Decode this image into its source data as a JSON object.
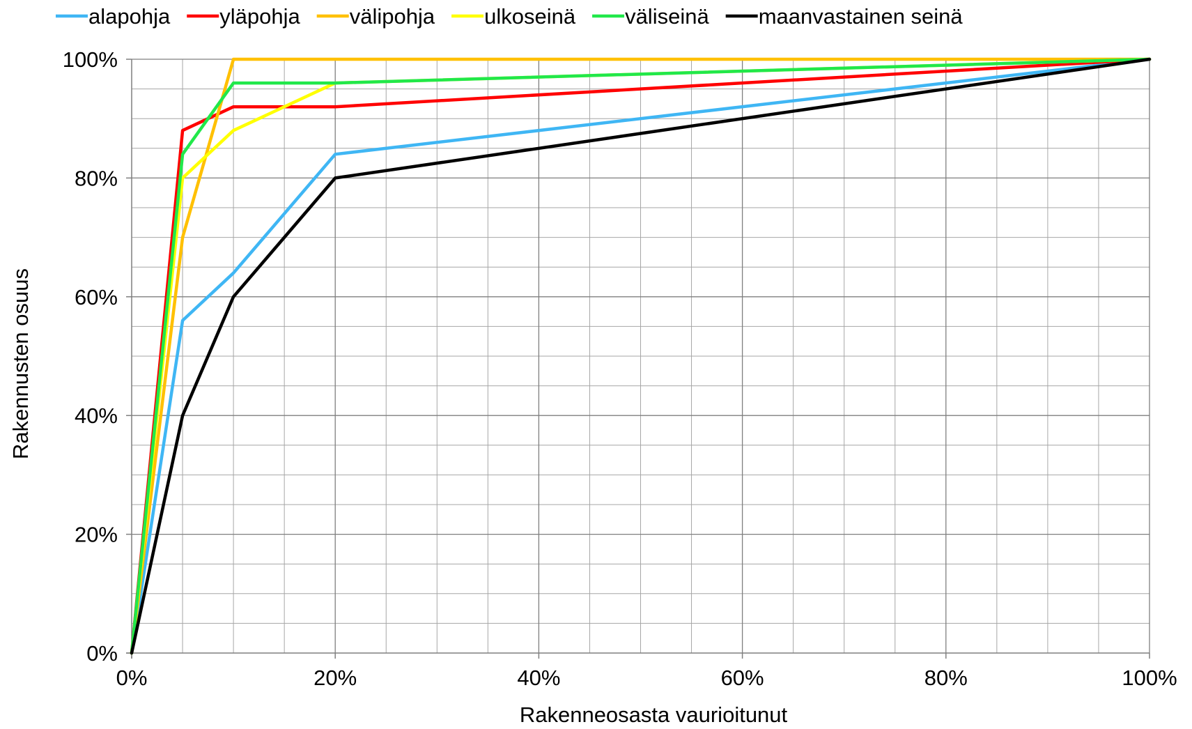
{
  "chart_data": {
    "type": "line",
    "title": "",
    "xlabel": "Rakenneosasta vaurioitunut",
    "ylabel": "Rakennusten osuus",
    "xlim": [
      0,
      100
    ],
    "ylim": [
      0,
      100
    ],
    "x_ticks": [
      0,
      20,
      40,
      60,
      80,
      100
    ],
    "y_ticks": [
      0,
      20,
      40,
      60,
      80,
      100
    ],
    "x_tick_labels": [
      "0%",
      "20%",
      "40%",
      "60%",
      "80%",
      "100%"
    ],
    "y_tick_labels": [
      "0%",
      "20%",
      "40%",
      "60%",
      "80%",
      "100%"
    ],
    "minor_grid_step": 5,
    "grid": true,
    "legend_position": "top",
    "series": [
      {
        "name": "alapohja",
        "color": "#3fb6f4",
        "points": [
          [
            0,
            0
          ],
          [
            5,
            56
          ],
          [
            10,
            64
          ],
          [
            20,
            84
          ],
          [
            100,
            100
          ]
        ]
      },
      {
        "name": "yläpohja",
        "color": "#ff0000",
        "points": [
          [
            0,
            0
          ],
          [
            5,
            88
          ],
          [
            10,
            92
          ],
          [
            20,
            92
          ],
          [
            100,
            100
          ]
        ]
      },
      {
        "name": "välipohja",
        "color": "#ffc000",
        "points": [
          [
            0,
            0
          ],
          [
            5,
            70
          ],
          [
            10,
            100
          ],
          [
            20,
            100
          ],
          [
            100,
            100
          ]
        ]
      },
      {
        "name": "ulkoseinä",
        "color": "#ffff00",
        "points": [
          [
            0,
            0
          ],
          [
            5,
            80
          ],
          [
            10,
            88
          ],
          [
            20,
            96
          ],
          [
            100,
            100
          ]
        ]
      },
      {
        "name": "väliseinä",
        "color": "#21e84a",
        "points": [
          [
            0,
            0
          ],
          [
            5,
            84
          ],
          [
            10,
            96
          ],
          [
            20,
            96
          ],
          [
            100,
            100
          ]
        ]
      },
      {
        "name": "maanvastainen seinä",
        "color": "#000000",
        "points": [
          [
            0,
            0
          ],
          [
            5,
            40
          ],
          [
            10,
            60
          ],
          [
            20,
            80
          ],
          [
            100,
            100
          ]
        ]
      }
    ]
  }
}
